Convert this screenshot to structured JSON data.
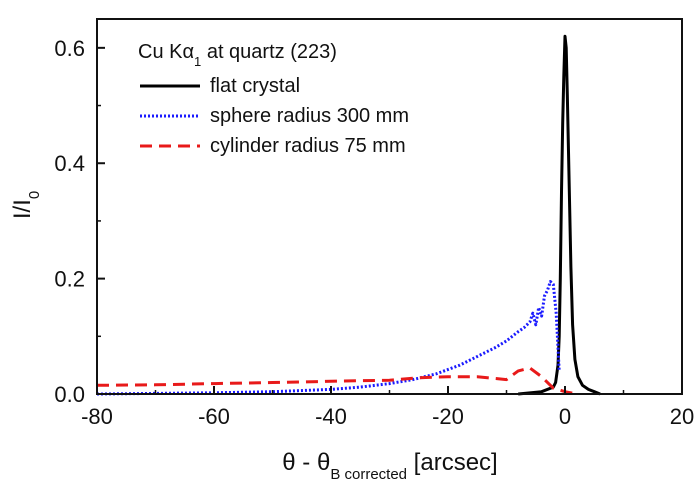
{
  "chart_data": {
    "type": "line",
    "annotation": {
      "prefix": "Cu K",
      "greek": "α",
      "sub": "1",
      "suffix": " at quartz (223)"
    },
    "xlabel": {
      "main": "θ - θ",
      "sub": "B corrected",
      "unit": " [arcsec]"
    },
    "ylabel": {
      "main": "I/I",
      "sub": "0"
    },
    "xlim": [
      -80,
      20
    ],
    "ylim": [
      0,
      0.65
    ],
    "xticks": [
      -80,
      -60,
      -40,
      -20,
      0,
      20
    ],
    "xtick_labels": [
      "-80",
      "-60",
      "-40",
      "-20",
      "0",
      "20"
    ],
    "yticks": [
      0.0,
      0.2,
      0.4,
      0.6
    ],
    "ytick_labels": [
      "0.0",
      "0.2",
      "0.4",
      "0.6"
    ],
    "grid": false,
    "legend_position": "top-left",
    "series": [
      {
        "name": "flat crystal",
        "color": "#000000",
        "style": "solid",
        "x": [
          -8,
          -4,
          -2,
          -1.6,
          -1.2,
          -1.0,
          -0.8,
          -0.6,
          -0.4,
          -0.2,
          0.0,
          0.2,
          0.4,
          0.6,
          0.8,
          1.0,
          1.3,
          1.7,
          2.2,
          3,
          4,
          5,
          6
        ],
        "y": [
          0.0,
          0.004,
          0.012,
          0.02,
          0.05,
          0.1,
          0.2,
          0.35,
          0.47,
          0.55,
          0.62,
          0.6,
          0.52,
          0.42,
          0.32,
          0.22,
          0.12,
          0.06,
          0.03,
          0.015,
          0.008,
          0.004,
          0.0
        ]
      },
      {
        "name": "sphere radius 300 mm",
        "color": "#1a1aff",
        "style": "dotted",
        "x": [
          -80,
          -70,
          -60,
          -50,
          -40,
          -35,
          -30,
          -26,
          -22,
          -18,
          -16,
          -14,
          -12,
          -10,
          -9,
          -8,
          -7,
          -6,
          -5.5,
          -5,
          -4.5,
          -4,
          -3.5,
          -3,
          -2.5,
          -2,
          -1.5,
          -1
        ],
        "y": [
          0.0,
          0.001,
          0.002,
          0.004,
          0.008,
          0.012,
          0.018,
          0.025,
          0.035,
          0.05,
          0.06,
          0.07,
          0.08,
          0.092,
          0.1,
          0.108,
          0.115,
          0.125,
          0.14,
          0.12,
          0.15,
          0.135,
          0.17,
          0.18,
          0.195,
          0.19,
          0.14,
          0.04
        ]
      },
      {
        "name": "cylinder radius 75 mm",
        "color": "#e81a1a",
        "style": "dashed",
        "x": [
          -80,
          -70,
          -60,
          -50,
          -40,
          -35,
          -30,
          -25,
          -20,
          -15,
          -10,
          -8,
          -6,
          -4,
          -2,
          0,
          2
        ],
        "y": [
          0.015,
          0.016,
          0.018,
          0.02,
          0.022,
          0.023,
          0.024,
          0.028,
          0.03,
          0.03,
          0.025,
          0.04,
          0.045,
          0.03,
          0.01,
          0.004,
          0.0
        ]
      }
    ]
  }
}
